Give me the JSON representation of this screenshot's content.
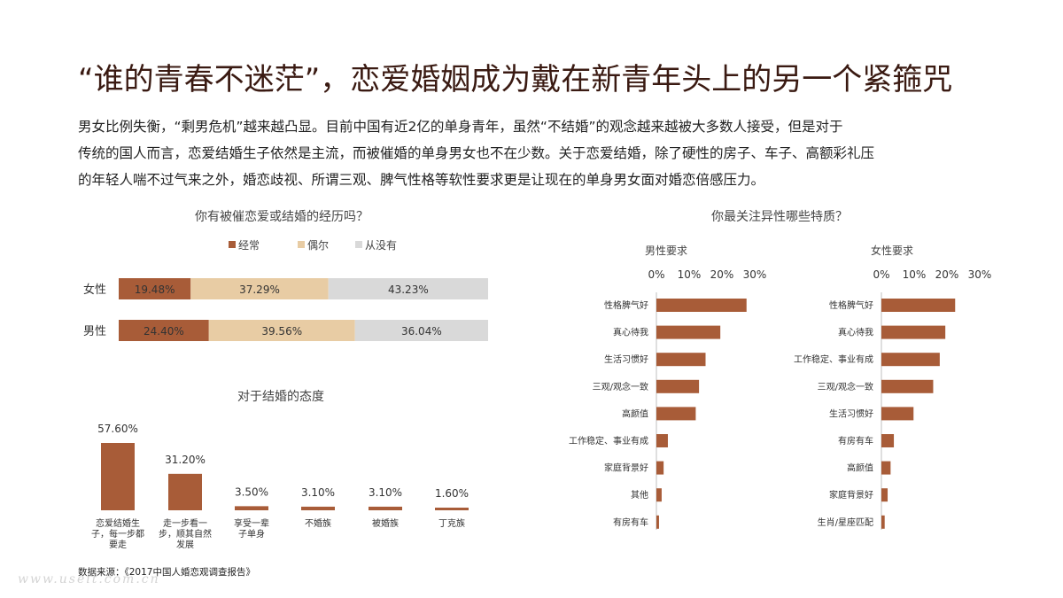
{
  "title": "“谁的青春不迷茫”，恋爱婚姻成为戴在新青年头上的另一个紧箍咒",
  "intro": [
    "男女比例失衡，“剩男危机”越来越凸显。目前中国有近2亿的单身青年，虽然“不结婚”的观念越来越被大多数人接受，但是对于",
    "传统的国人而言，恋爱结婚生子依然是主流，而被催婚的单身男女也不在少数。关于恋爱结婚，除了硬性的房子、车子、高额彩礼压",
    "的年轻人喘不过气来之外，婚恋歧视、所谓三观、脾气性格等软性要求更是让现在的单身男女面对婚恋倍感压力。"
  ],
  "source": "数据来源：《2017中国人婚恋观调查报告》",
  "watermark": "www.useit.com.cn",
  "colors": {
    "brown": "#a85c38",
    "beige": "#e8cca4",
    "gray": "#d9d9d9",
    "title": "#3a1a12"
  },
  "chart_data": [
    {
      "type": "bar",
      "orientation": "horizontal-stacked",
      "title": "你有被催恋爱或结婚的经历吗？",
      "categories": [
        "女性",
        "男性"
      ],
      "series": [
        {
          "name": "经常",
          "values": [
            19.48,
            24.4
          ],
          "labels": [
            "19.48%",
            "24.40%"
          ],
          "color": "#a85c38"
        },
        {
          "name": "偶尔",
          "values": [
            37.29,
            39.56
          ],
          "labels": [
            "37.29%",
            "39.56%"
          ],
          "color": "#e8cca4"
        },
        {
          "name": "从没有",
          "values": [
            43.23,
            36.04
          ],
          "labels": [
            "43.23%",
            "36.04%"
          ],
          "color": "#d9d9d9"
        }
      ],
      "legend": "top"
    },
    {
      "type": "bar",
      "title": "对于结婚的态度",
      "categories": [
        "恋爱结婚生子，每一步都要走",
        "走一步看一步，顺其自然发展",
        "享受一辈子单身",
        "不婚族",
        "被婚族",
        "丁克族"
      ],
      "category_lines": [
        [
          "恋爱结婚生",
          "子，每一步都",
          "要走"
        ],
        [
          "走一步看一",
          "步，顺其自然",
          "发展"
        ],
        [
          "享受一辈",
          "子单身"
        ],
        [
          "不婚族"
        ],
        [
          "被婚族"
        ],
        [
          "丁克族"
        ]
      ],
      "values": [
        57.6,
        31.2,
        3.5,
        3.1,
        3.1,
        1.6
      ],
      "labels": [
        "57.60%",
        "31.20%",
        "3.50%",
        "3.10%",
        "3.10%",
        "1.60%"
      ],
      "color": "#a85c38"
    },
    {
      "type": "bar",
      "orientation": "horizontal",
      "group_title": "你最关注异性哪些特质？",
      "title": "男性要求",
      "categories": [
        "性格脾气好",
        "真心待我",
        "生活习惯好",
        "三观/观念一致",
        "高颜值",
        "工作稳定、事业有成",
        "家庭背景好",
        "其他",
        "有房有车"
      ],
      "values": [
        27.5,
        19.5,
        15.0,
        13.0,
        12.0,
        3.5,
        2.2,
        1.6,
        0.8
      ],
      "xticks": [
        "0%",
        "10%",
        "20%",
        "30%"
      ],
      "xlim": [
        0,
        30
      ],
      "color": "#a85c38"
    },
    {
      "type": "bar",
      "orientation": "horizontal",
      "title": "女性要求",
      "categories": [
        "性格脾气好",
        "真心待我",
        "工作稳定、事业有成",
        "三观/观念一致",
        "生活习惯好",
        "有房有车",
        "高颜值",
        "家庭背景好",
        "生肖/星座匹配"
      ],
      "values": [
        22.5,
        19.5,
        17.8,
        15.8,
        9.8,
        3.8,
        2.8,
        1.9,
        1.0
      ],
      "xticks": [
        "0%",
        "10%",
        "20%",
        "30%"
      ],
      "xlim": [
        0,
        30
      ],
      "color": "#a85c38"
    }
  ]
}
